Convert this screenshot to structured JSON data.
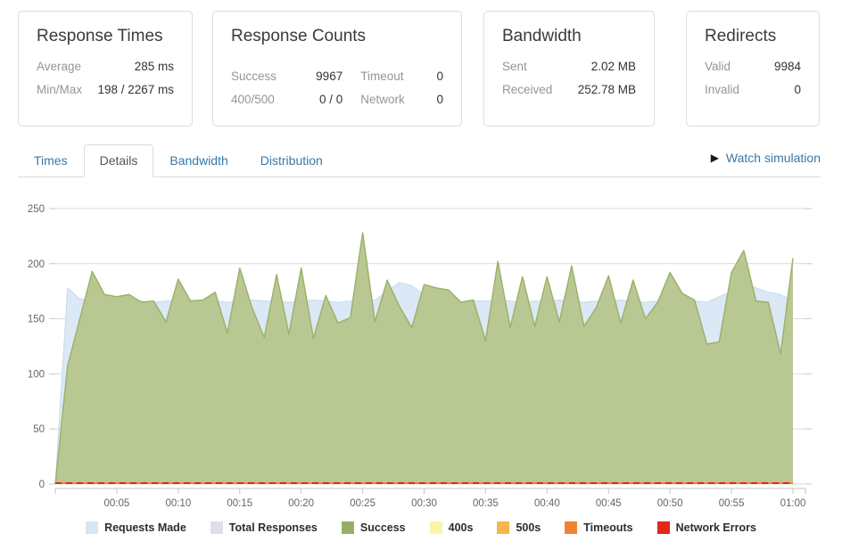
{
  "cards": [
    {
      "title": "Response Times",
      "rows": [
        {
          "label": "Average",
          "value": "285 ms"
        },
        {
          "label": "Min/Max",
          "value": "198 / 2267 ms"
        }
      ]
    },
    {
      "title": "Response Counts",
      "rows": [
        {
          "label": "Success",
          "value": "9967"
        },
        {
          "label": "Timeout",
          "value": "0"
        },
        {
          "label": "400/500",
          "value": "0 / 0"
        },
        {
          "label": "Network",
          "value": "0"
        }
      ]
    },
    {
      "title": "Bandwidth",
      "rows": [
        {
          "label": "Sent",
          "value": "2.02 MB"
        },
        {
          "label": "Received",
          "value": "252.78 MB"
        }
      ]
    },
    {
      "title": "Redirects",
      "rows": [
        {
          "label": "Valid",
          "value": "9984"
        },
        {
          "label": "Invalid",
          "value": "0"
        }
      ]
    }
  ],
  "tabs": {
    "items": [
      {
        "label": "Times",
        "active": false
      },
      {
        "label": "Details",
        "active": true
      },
      {
        "label": "Bandwidth",
        "active": false
      },
      {
        "label": "Distribution",
        "active": false
      }
    ],
    "watch_link": {
      "icon": "play-triangle-icon",
      "label": "Watch simulation"
    }
  },
  "colors": {
    "link_blue": "#3878a8",
    "grid": "#d9d9d9",
    "axis": "#c6c6c6",
    "axis_text": "#666666",
    "card_border": "#dddddd"
  },
  "chart_data": {
    "type": "area",
    "title": "",
    "xlabel": "",
    "ylabel": "",
    "x_unit": "elapsed time mm:ss, one point per minute (00:00 - 01:00)",
    "x_tick_labels": [
      "00:05",
      "00:10",
      "00:15",
      "00:20",
      "00:25",
      "00:30",
      "00:35",
      "00:40",
      "00:45",
      "00:50",
      "00:55",
      "01:00"
    ],
    "ylim": [
      0,
      250
    ],
    "y_ticks": [
      0,
      50,
      100,
      150,
      200,
      250
    ],
    "grid": "horizontal",
    "legend_position": "bottom",
    "series": [
      {
        "name": "Requests Made",
        "color": "#dbe8f5",
        "line_color": "#c6daed",
        "swatch": "#d8e6f4",
        "values": [
          0,
          178,
          168,
          167,
          166,
          166,
          167,
          166,
          165,
          166,
          166,
          167,
          166,
          166,
          165,
          166,
          167,
          166,
          166,
          165,
          166,
          167,
          166,
          165,
          166,
          166,
          167,
          175,
          183,
          180,
          172,
          166,
          166,
          165,
          166,
          166,
          167,
          166,
          165,
          166,
          166,
          167,
          166,
          165,
          166,
          166,
          167,
          166,
          165,
          166,
          167,
          168,
          166,
          165,
          170,
          175,
          182,
          178,
          174,
          172,
          166
        ]
      },
      {
        "name": "Total Responses",
        "color": "#e2def2",
        "line_color": "#d6d0eb",
        "swatch": "#e1ddf0",
        "values": [
          0,
          107,
          150,
          193,
          172,
          170,
          172,
          165,
          166,
          147,
          186,
          166,
          167,
          174,
          137,
          196,
          160,
          133,
          190,
          136,
          196,
          132,
          171,
          146,
          151,
          228,
          147,
          185,
          161,
          142,
          181,
          178,
          176,
          165,
          167,
          130,
          202,
          142,
          188,
          143,
          188,
          147,
          198,
          143,
          160,
          189,
          146,
          185,
          150,
          165,
          192,
          173,
          167,
          127,
          129,
          192,
          212,
          166,
          165,
          118,
          205
        ]
      },
      {
        "name": "Success",
        "color": "#b9c893",
        "line_color": "#9db26b",
        "swatch": "#98ae66",
        "values": [
          0,
          107,
          150,
          193,
          172,
          170,
          172,
          165,
          166,
          147,
          186,
          166,
          167,
          174,
          137,
          196,
          160,
          133,
          190,
          136,
          196,
          132,
          171,
          146,
          151,
          228,
          147,
          185,
          161,
          142,
          181,
          178,
          176,
          165,
          167,
          130,
          202,
          142,
          188,
          143,
          188,
          147,
          198,
          143,
          160,
          189,
          146,
          185,
          150,
          165,
          192,
          173,
          167,
          127,
          129,
          192,
          212,
          166,
          165,
          118,
          205
        ]
      },
      {
        "name": "400s",
        "color": "#f9f5a8",
        "swatch": "#f9f5a8",
        "values_constant": 0
      },
      {
        "name": "500s",
        "color": "#f3b74e",
        "swatch": "#f3b74e",
        "values_constant": 0
      },
      {
        "name": "Timeouts",
        "color": "#ee8432",
        "swatch": "#ee8432",
        "values_constant": 0
      },
      {
        "name": "Network Errors",
        "color": "#e2271c",
        "swatch": "#e2271c",
        "values_constant": 0,
        "style": "dashed"
      }
    ]
  }
}
